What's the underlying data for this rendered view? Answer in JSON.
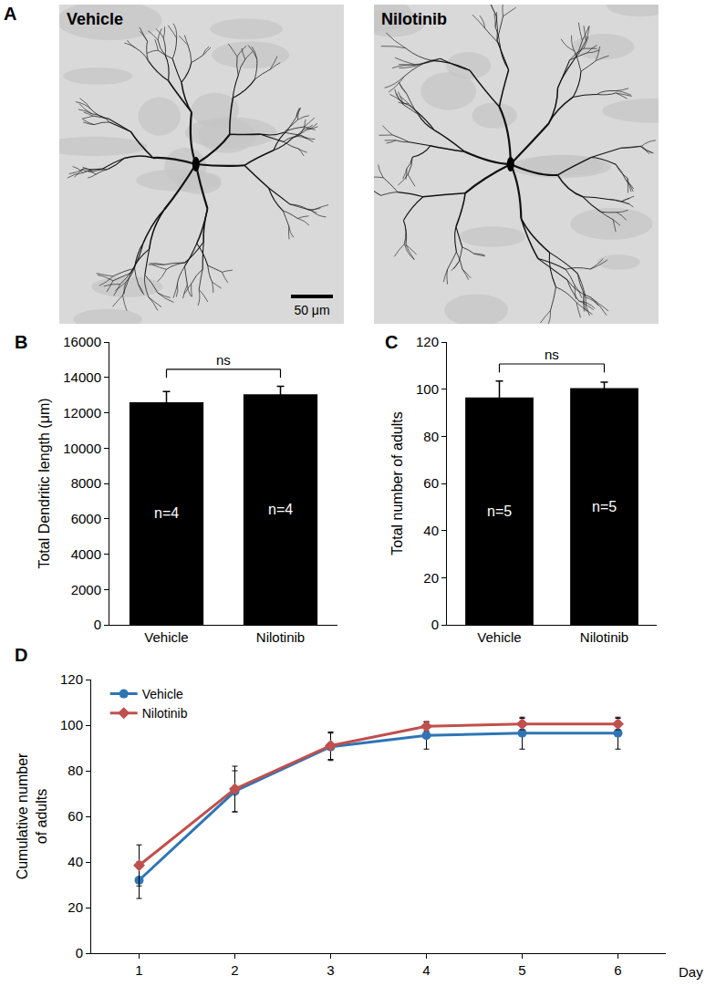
{
  "image_panel": {
    "label": "A",
    "images": [
      "Vehicle",
      "Nilotinib"
    ],
    "scale_bar": "50 μm"
  },
  "chart_data": [
    {
      "type": "bar",
      "title": "B",
      "categories": [
        "Vehicle",
        "Nilotinib"
      ],
      "values": [
        12600,
        13050
      ],
      "errors": [
        600,
        450
      ],
      "color": "#000000",
      "ylabel": "Total Dendritic length (μm)",
      "ylim": [
        0,
        16000
      ],
      "yticks": [
        0,
        2000,
        4000,
        6000,
        8000,
        10000,
        12000,
        14000,
        16000
      ],
      "grid": false,
      "significance": "ns",
      "bar_labels": [
        "n=4",
        "n=4"
      ]
    },
    {
      "type": "bar",
      "title": "C",
      "categories": [
        "Vehicle",
        "Nilotinib"
      ],
      "values": [
        96.5,
        100.5
      ],
      "errors": [
        7,
        2.5
      ],
      "color": "#000000",
      "ylabel": "Total number of adults",
      "ylim": [
        0,
        120
      ],
      "yticks": [
        0,
        20,
        40,
        60,
        80,
        100,
        120
      ],
      "grid": false,
      "significance": "ns",
      "bar_labels": [
        "n=5",
        "n=5"
      ]
    },
    {
      "type": "line",
      "title": "D",
      "x": [
        1,
        2,
        3,
        4,
        5,
        6
      ],
      "xlabel": "Day",
      "ylabel": "Cumulative number\nof adults",
      "xlim": [
        0.5,
        6.5
      ],
      "xticks": [
        1,
        2,
        3,
        4,
        5,
        6
      ],
      "ylim": [
        0,
        120
      ],
      "yticks": [
        0,
        20,
        40,
        60,
        80,
        100,
        120
      ],
      "grid": false,
      "legend": "top-left",
      "series": [
        {
          "name": "Vehicle",
          "color": "#2e75b6",
          "marker": "circle",
          "values": [
            32,
            71,
            90.5,
            95.5,
            96.5,
            96.5
          ],
          "errors": [
            8,
            9,
            6,
            6,
            7,
            7
          ]
        },
        {
          "name": "Nilotinib",
          "color": "#c0504d",
          "marker": "diamond",
          "values": [
            38.5,
            72,
            91,
            99.5,
            100.5,
            100.5
          ],
          "errors": [
            9,
            10,
            6,
            2,
            2.5,
            2.5
          ]
        }
      ]
    }
  ]
}
